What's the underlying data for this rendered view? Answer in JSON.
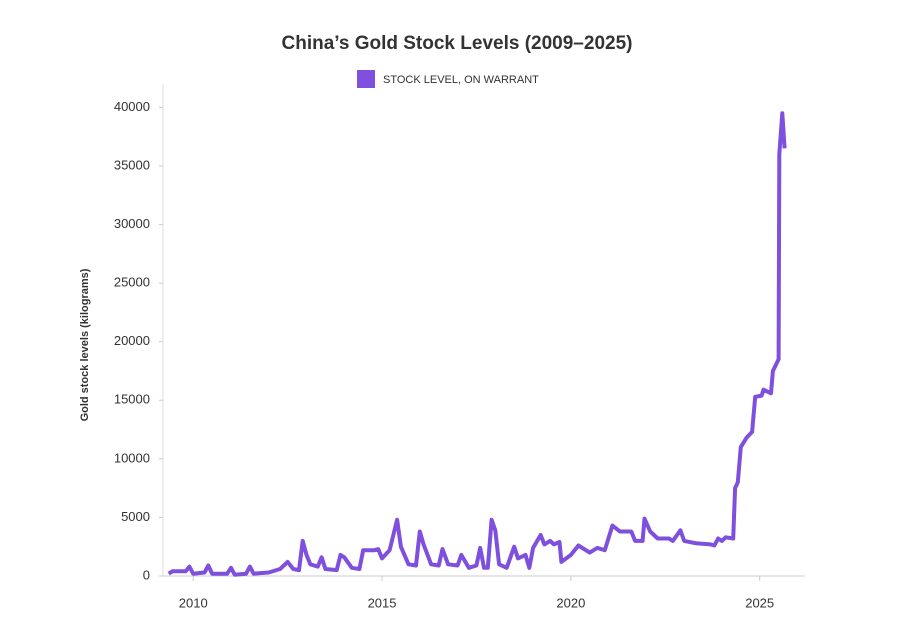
{
  "chart_data": {
    "type": "line",
    "title": "China’s Gold Stock Levels (2009–2025)",
    "y_label": "Gold stock levels (kilograms)",
    "legend": "top",
    "xlim": [
      2009.2,
      2026.2
    ],
    "xticks": [
      2010,
      2015,
      2020,
      2025
    ],
    "ylim": [
      0,
      42000
    ],
    "yticks": [
      0,
      5000,
      10000,
      15000,
      20000,
      25000,
      30000,
      35000,
      40000
    ],
    "x": [
      2009.35,
      2009.45,
      2009.8,
      2009.9,
      2010.0,
      2010.3,
      2010.4,
      2010.5,
      2010.9,
      2011.0,
      2011.1,
      2011.4,
      2011.5,
      2011.6,
      2012.0,
      2012.3,
      2012.5,
      2012.65,
      2012.8,
      2012.9,
      2013.0,
      2013.1,
      2013.3,
      2013.4,
      2013.5,
      2013.8,
      2013.9,
      2014.0,
      2014.2,
      2014.4,
      2014.5,
      2014.8,
      2014.9,
      2015.0,
      2015.2,
      2015.4,
      2015.5,
      2015.7,
      2015.9,
      2016.0,
      2016.1,
      2016.3,
      2016.5,
      2016.6,
      2016.75,
      2017.0,
      2017.1,
      2017.3,
      2017.5,
      2017.6,
      2017.7,
      2017.8,
      2017.9,
      2018.0,
      2018.1,
      2018.3,
      2018.5,
      2018.6,
      2018.8,
      2018.9,
      2019.0,
      2019.2,
      2019.3,
      2019.45,
      2019.55,
      2019.7,
      2019.75,
      2020.0,
      2020.2,
      2020.5,
      2020.7,
      2020.9,
      2021.1,
      2021.3,
      2021.6,
      2021.7,
      2021.9,
      2021.95,
      2022.1,
      2022.3,
      2022.6,
      2022.7,
      2022.9,
      2023.0,
      2023.3,
      2023.7,
      2023.8,
      2023.9,
      2024.0,
      2024.1,
      2024.3,
      2024.35,
      2024.42,
      2024.5,
      2024.65,
      2024.8,
      2024.88,
      2025.05,
      2025.1,
      2025.3,
      2025.35,
      2025.5,
      2025.52,
      2025.6,
      2025.66
    ],
    "series": [
      {
        "name": "STOCK LEVEL, ON WARRANT",
        "color": "#7f4fdd",
        "values": [
          200,
          400,
          400,
          800,
          200,
          300,
          900,
          200,
          200,
          700,
          100,
          200,
          800,
          200,
          300,
          600,
          1200,
          600,
          500,
          3000,
          1800,
          1000,
          800,
          1600,
          600,
          500,
          1800,
          1600,
          700,
          600,
          2200,
          2200,
          2300,
          1500,
          2200,
          4800,
          2500,
          1000,
          900,
          3800,
          2700,
          1000,
          900,
          2300,
          1000,
          900,
          1800,
          700,
          900,
          2400,
          700,
          700,
          4800,
          3900,
          1000,
          700,
          2500,
          1500,
          1800,
          700,
          2400,
          3500,
          2700,
          3000,
          2700,
          2900,
          1200,
          1800,
          2600,
          2000,
          2400,
          2200,
          4300,
          3800,
          3800,
          3000,
          3000,
          4900,
          3800,
          3200,
          3200,
          3000,
          3900,
          3000,
          2800,
          2700,
          2600,
          3200,
          3000,
          3300,
          3200,
          7500,
          8000,
          11000,
          11800,
          12300,
          15300,
          15400,
          15900,
          15600,
          17500,
          18500,
          36000,
          39500,
          36500
        ]
      }
    ]
  }
}
